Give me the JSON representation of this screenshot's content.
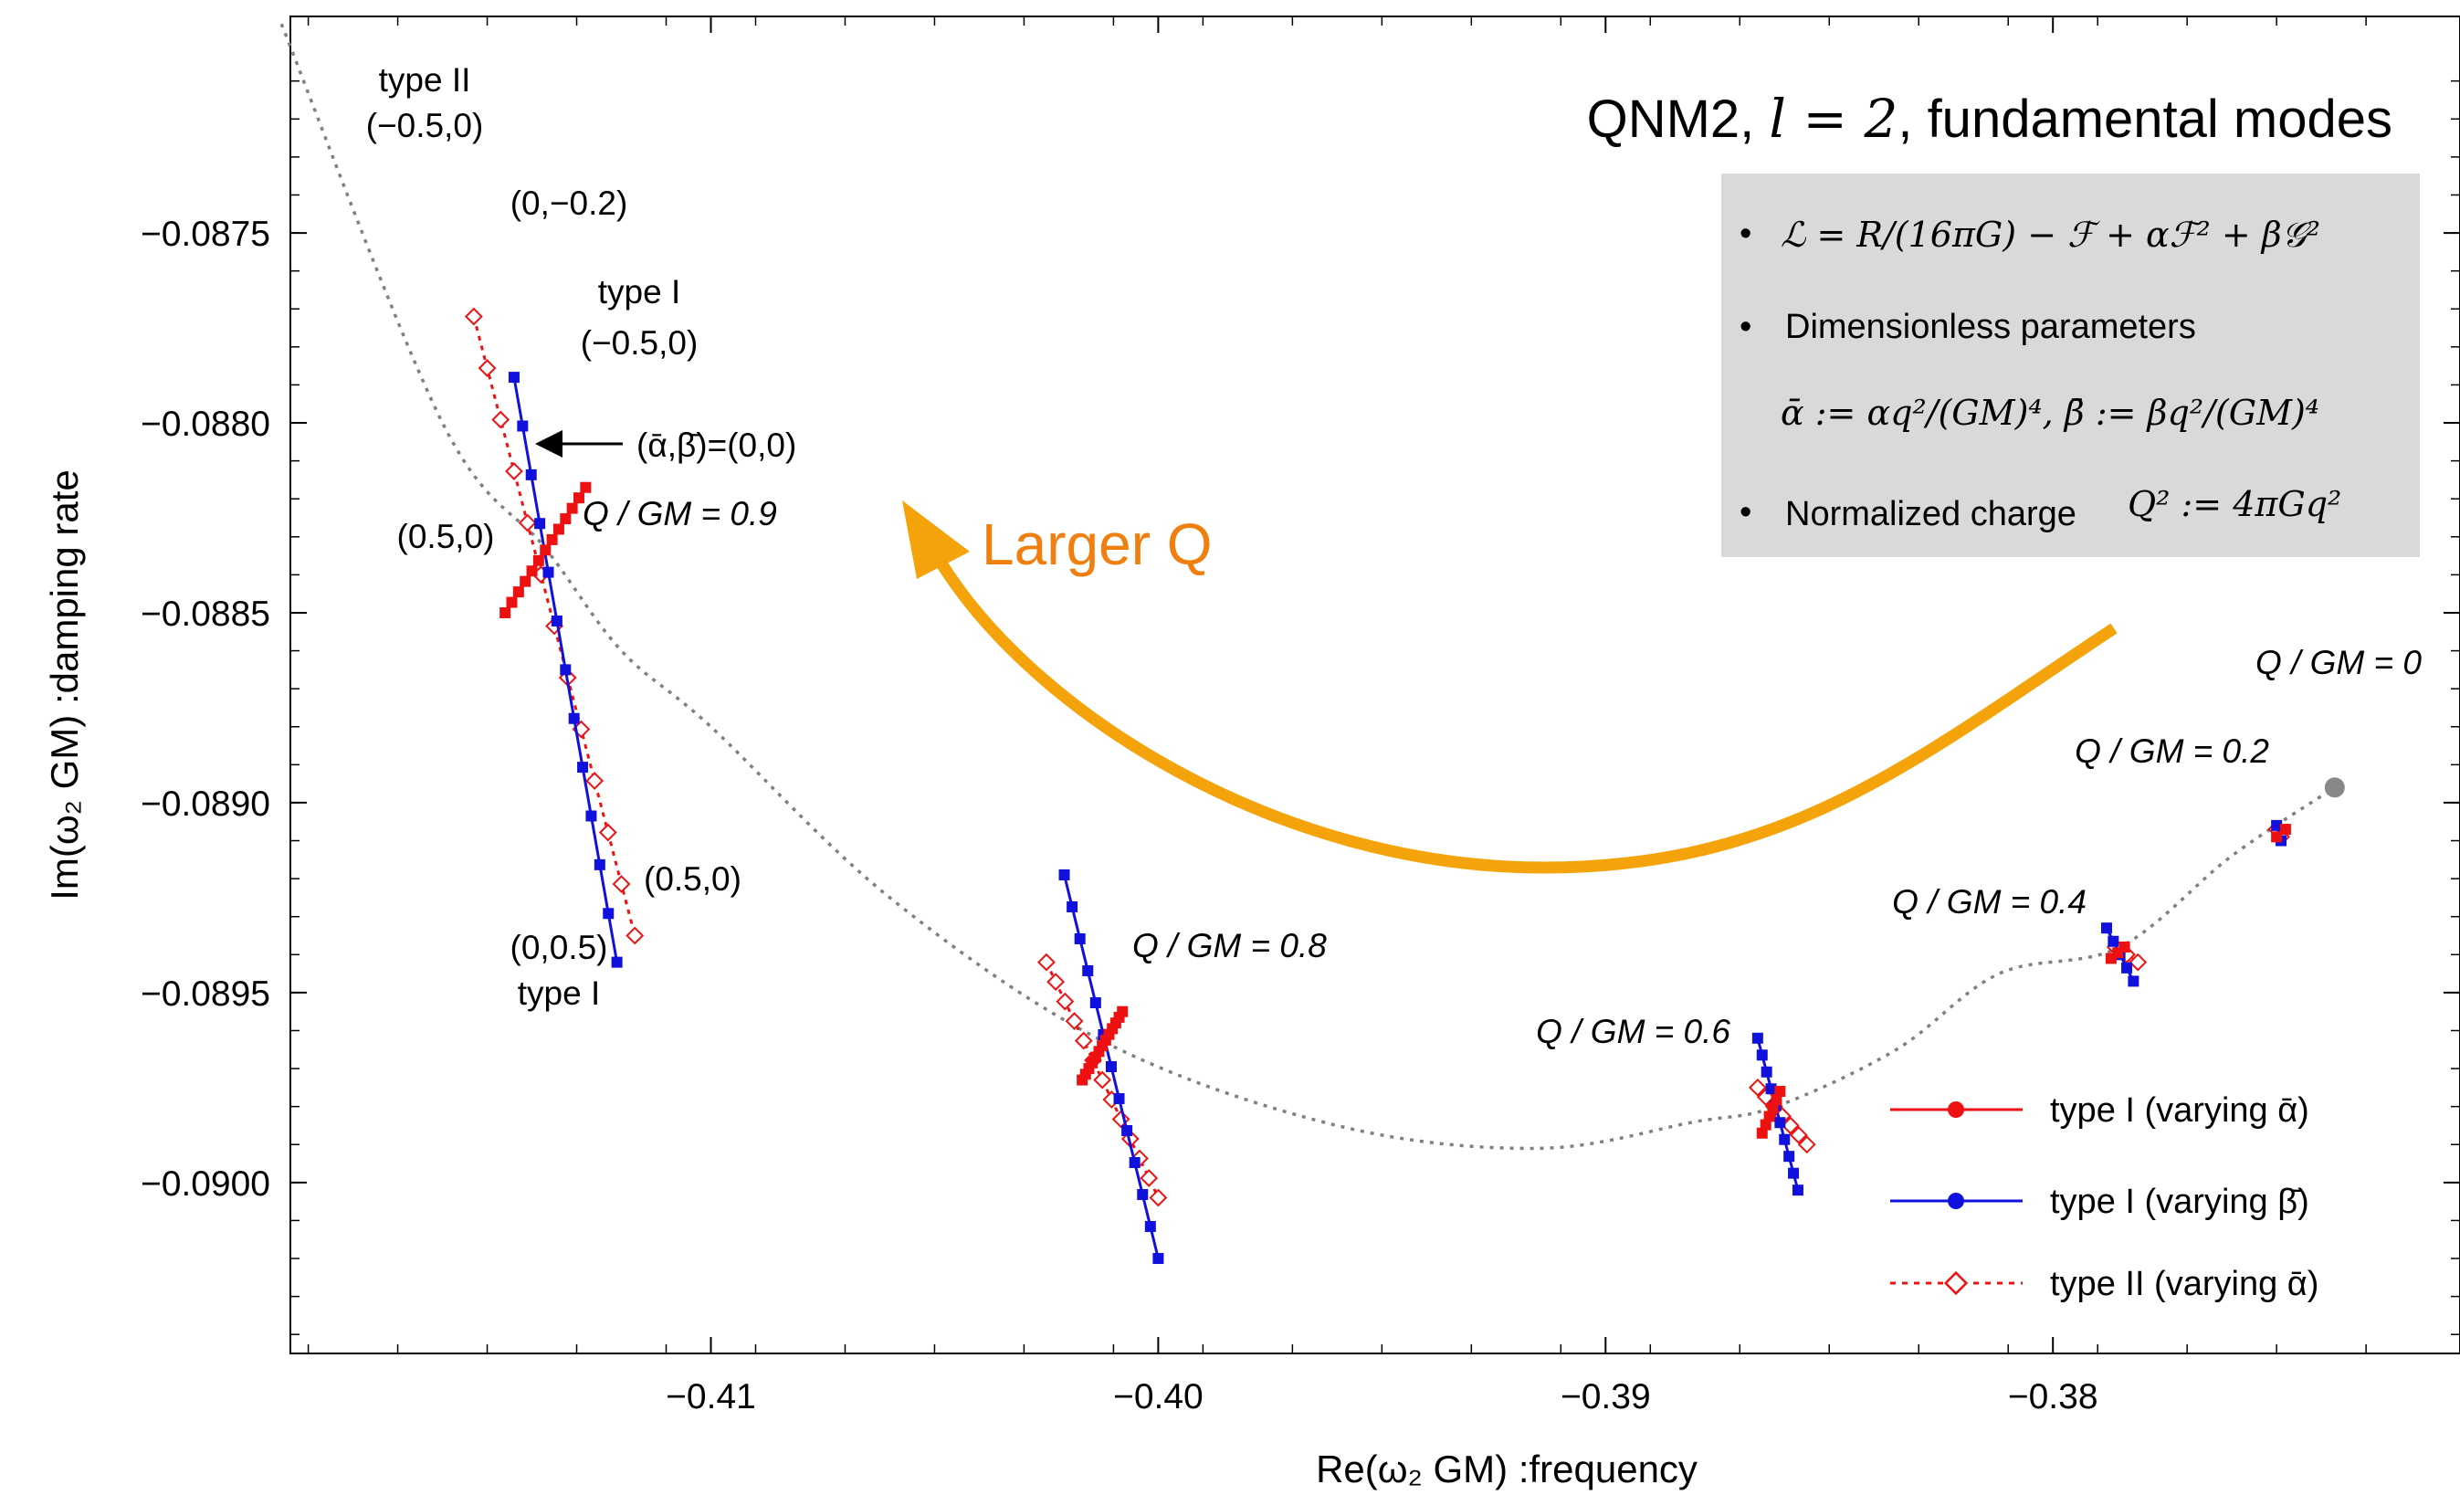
{
  "colors": {
    "type1_alpha": "#ee1111",
    "type1_beta": "#1111dd",
    "type2_alpha": "#ee1111",
    "qdot": "#888888",
    "arrow": "#f5a30a",
    "arrow_text": "#ef7f0e",
    "infobox": "#d9d9d9"
  },
  "title_main": "QNM2, ",
  "title_math": "l = 2",
  "title_tail": ", fundamental modes",
  "infobox": {
    "item1_math": "ℒ = R/(16πG) − ℱ + αℱ² + β𝒢²",
    "item2": "Dimensionless parameters",
    "item2_math": "ᾱ := αq²/(GM)⁴,  β̄ := βq²/(GM)⁴",
    "item3": "Normalized charge",
    "item3_math": "Q² := 4πGq²"
  },
  "arrow_label": "Larger Q",
  "chart_data": {
    "type": "scatter",
    "xlabel": "Re(ω₂ GM) :frequency",
    "ylabel": "Im(ω₂ GM) :damping rate",
    "xlim": [
      -0.4194,
      -0.3709
    ],
    "ylim": [
      -0.09045,
      -0.08693
    ],
    "xticks": [
      -0.41,
      -0.4,
      -0.39,
      -0.38
    ],
    "xtick_labels": [
      "−0.41",
      "−0.40",
      "−0.39",
      "−0.38"
    ],
    "yticks": [
      -0.0875,
      -0.088,
      -0.0885,
      -0.089,
      -0.0895,
      -0.09
    ],
    "ytick_labels": [
      "−0.0875",
      "−0.0880",
      "−0.0885",
      "−0.0890",
      "−0.0895",
      "−0.0900"
    ],
    "legend_position": "bottom-right",
    "reference_curve": {
      "description": "dotted gray curve of type I (0,0) modes as Q/GM varies",
      "x": [
        -0.4196,
        -0.416,
        -0.4137,
        -0.412,
        -0.41,
        -0.406,
        -0.4012,
        -0.396,
        -0.3915,
        -0.388,
        -0.3862,
        -0.3835,
        -0.3812,
        -0.3785,
        -0.376,
        -0.3737
      ],
      "y": [
        -0.08695,
        -0.088,
        -0.08833,
        -0.0886,
        -0.0888,
        -0.08925,
        -0.08963,
        -0.08985,
        -0.08991,
        -0.08984,
        -0.0898,
        -0.08965,
        -0.08945,
        -0.08938,
        -0.08914,
        -0.08896
      ]
    },
    "q_points": [
      {
        "label": "Q / GM = 0",
        "x": -0.3737,
        "y": -0.08896
      },
      {
        "label": "Q / GM = 0.2",
        "x": -0.3749,
        "y": -0.08908
      },
      {
        "label": "Q / GM = 0.4",
        "x": -0.3785,
        "y": -0.08939
      },
      {
        "label": "Q / GM = 0.6",
        "x": -0.3862,
        "y": -0.0898
      },
      {
        "label": "Q / GM = 0.8",
        "x": -0.4012,
        "y": -0.08963
      },
      {
        "label": "Q / GM = 0.9",
        "x": -0.4137,
        "y": -0.08833
      }
    ],
    "series": [
      {
        "name": "type I (varying ᾱ)",
        "style": "solid-square",
        "clusters": [
          {
            "x0": -0.4146,
            "y0": -0.0885,
            "x1": -0.4128,
            "y1": -0.08817,
            "n": 13
          },
          {
            "x0": -0.4017,
            "y0": -0.08973,
            "x1": -0.4008,
            "y1": -0.08955,
            "n": 13
          },
          {
            "x0": -0.3865,
            "y0": -0.08987,
            "x1": -0.3861,
            "y1": -0.08976,
            "n": 6
          },
          {
            "x0": -0.3787,
            "y0": -0.08941,
            "x1": -0.3784,
            "y1": -0.08938,
            "n": 3
          },
          {
            "x0": -0.375,
            "y0": -0.08909,
            "x1": -0.3748,
            "y1": -0.08907,
            "n": 2
          }
        ]
      },
      {
        "name": "type I (varying β̄)",
        "style": "solid-square",
        "clusters": [
          {
            "x0": -0.4144,
            "y0": -0.08788,
            "x1": -0.4121,
            "y1": -0.08942,
            "n": 13
          },
          {
            "x0": -0.4021,
            "y0": -0.08919,
            "x1": -0.4,
            "y1": -0.0902,
            "n": 13
          },
          {
            "x0": -0.3866,
            "y0": -0.08962,
            "x1": -0.3857,
            "y1": -0.09002,
            "n": 10
          },
          {
            "x0": -0.3788,
            "y0": -0.08933,
            "x1": -0.3782,
            "y1": -0.08947,
            "n": 5
          },
          {
            "x0": -0.375,
            "y0": -0.08906,
            "x1": -0.3749,
            "y1": -0.0891,
            "n": 2
          }
        ]
      },
      {
        "name": "type II (varying ᾱ)",
        "style": "dotted-diamond",
        "clusters": [
          {
            "x0": -0.4153,
            "y0": -0.08772,
            "x1": -0.4117,
            "y1": -0.08935,
            "n": 13
          },
          {
            "x0": -0.4025,
            "y0": -0.08942,
            "x1": -0.4,
            "y1": -0.09004,
            "n": 13
          },
          {
            "x0": -0.3866,
            "y0": -0.08975,
            "x1": -0.3855,
            "y1": -0.0899,
            "n": 7
          },
          {
            "x0": -0.3786,
            "y0": -0.08938,
            "x1": -0.3781,
            "y1": -0.08942,
            "n": 3
          },
          {
            "x0": -0.375,
            "y0": -0.08907,
            "x1": -0.3749,
            "y1": -0.08909,
            "n": 2
          }
        ]
      }
    ],
    "annotations": {
      "type2_top_line1": "type II",
      "type2_top_line2": "(−0.5,0)",
      "beta_top": "(0,−0.2)",
      "type1_top_line1": "type I",
      "type1_top_line2": "(−0.5,0)",
      "origin_label": "(ᾱ,β̄)=(0,0)",
      "alpha_bottom": "(0.5,0)",
      "type2_bottom": "(0.5,0)",
      "beta_bottom_line1": "(0,0.5)",
      "beta_bottom_line2": "type I"
    }
  }
}
